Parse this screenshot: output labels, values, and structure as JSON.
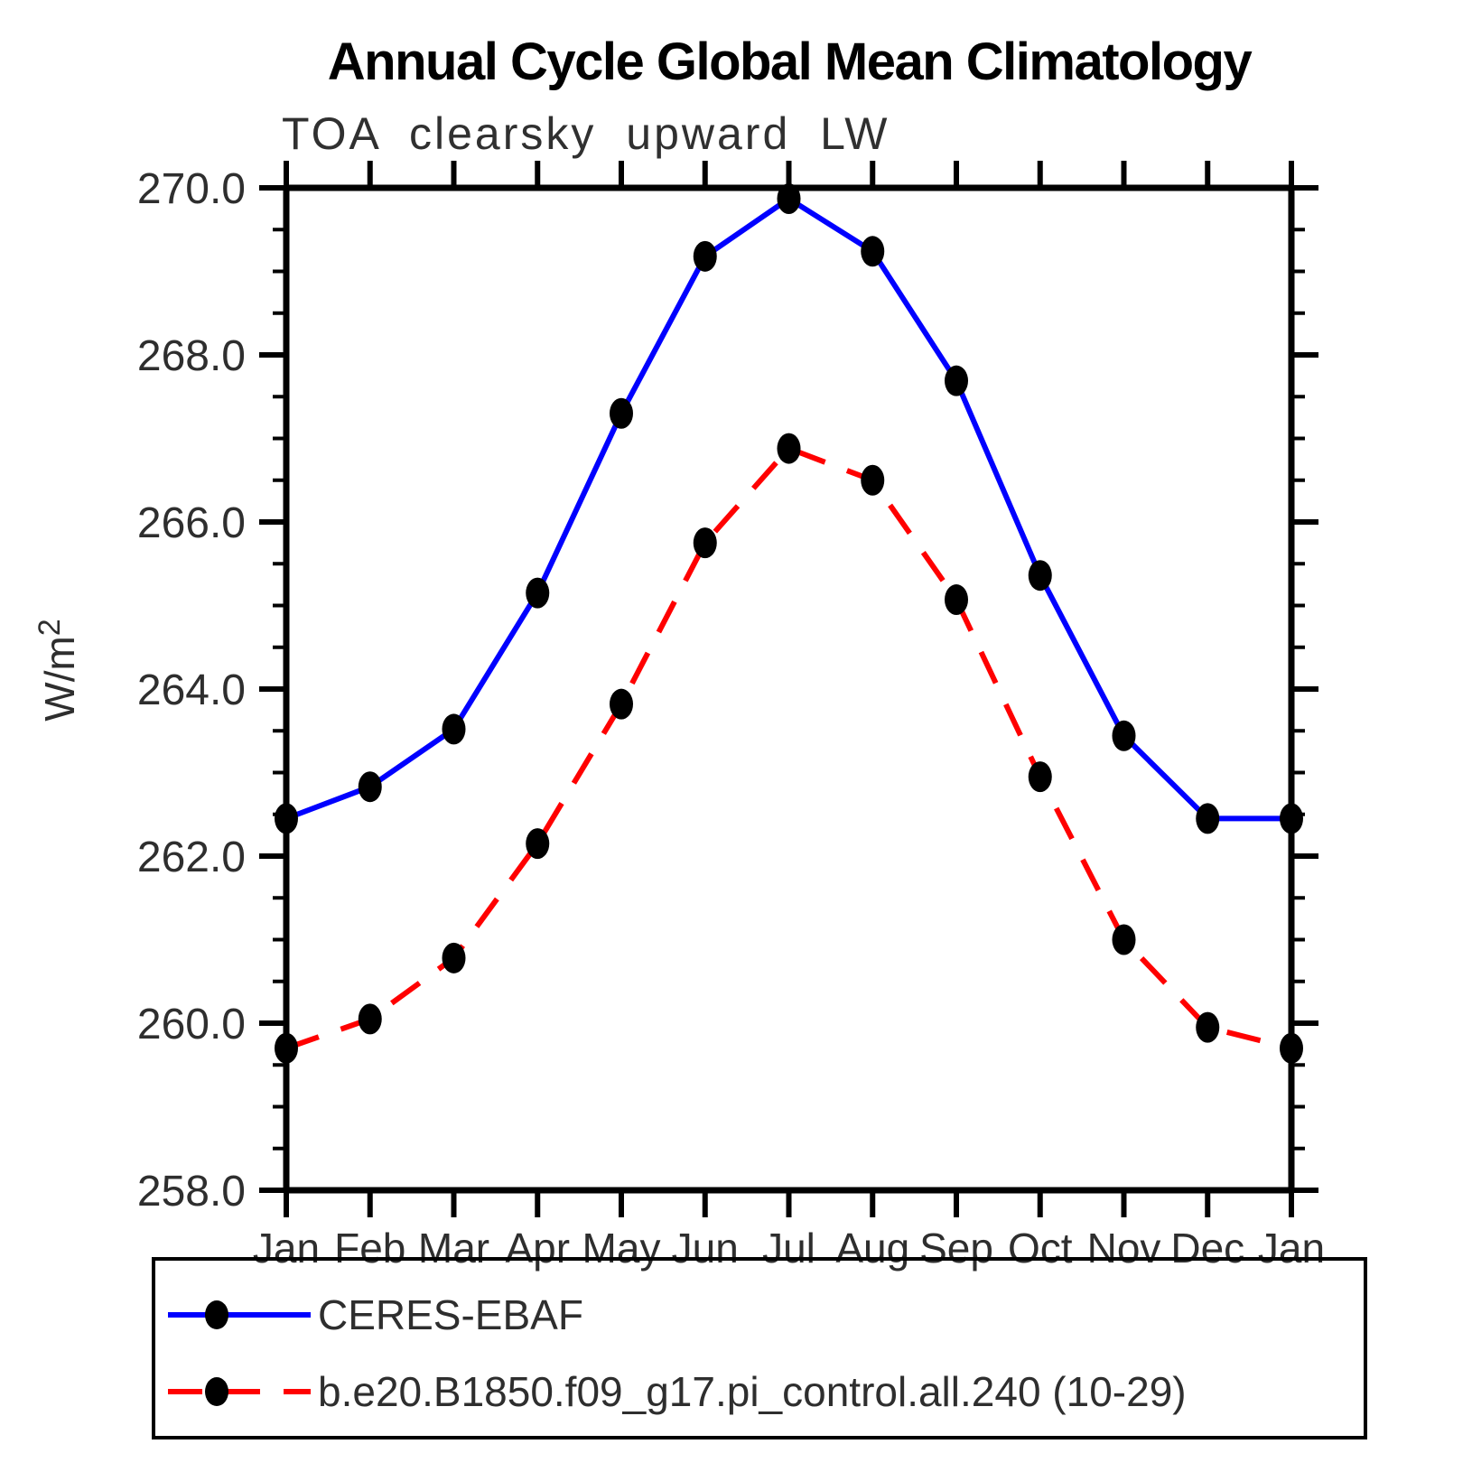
{
  "title": "Annual Cycle Global Mean Climatology",
  "subtitle": "TOA clearsky upward LW",
  "y_axis": {
    "unit_base": "W/m",
    "unit_exp": "2",
    "tick_labels": [
      "270.0",
      "268.0",
      "266.0",
      "264.0",
      "262.0",
      "260.0",
      "258.0"
    ],
    "min": 258.0,
    "max": 270.0,
    "major_step": 2.0,
    "minor_step": 0.5
  },
  "x_axis": {
    "tick_labels": [
      "Jan",
      "Feb",
      "Mar",
      "Apr",
      "May",
      "Jun",
      "Jul",
      "Aug",
      "Sep",
      "Oct",
      "Nov",
      "Dec",
      "Jan"
    ]
  },
  "legend": [
    {
      "label": "CERES-EBAF",
      "color": "#0000ff",
      "style": "solid",
      "marker_color": "#000000"
    },
    {
      "label": "b.e20.B1850.f09_g17.pi_control.all.240 (10-29)",
      "color": "#ff0000",
      "style": "dashed",
      "marker_color": "#000000"
    }
  ],
  "chart_data": {
    "type": "line",
    "x": [
      "Jan",
      "Feb",
      "Mar",
      "Apr",
      "May",
      "Jun",
      "Jul",
      "Aug",
      "Sep",
      "Oct",
      "Nov",
      "Dec",
      "Jan"
    ],
    "series": [
      {
        "name": "CERES-EBAF",
        "color": "#0000ff",
        "line_style": "solid",
        "marker": "filled-circle",
        "marker_color": "#000000",
        "values": [
          262.45,
          262.83,
          263.52,
          265.15,
          267.3,
          269.18,
          269.87,
          269.24,
          267.69,
          265.36,
          263.44,
          262.45,
          262.45
        ]
      },
      {
        "name": "b.e20.B1850.f09_g17.pi_control.all.240 (10-29)",
        "color": "#ff0000",
        "line_style": "dashed",
        "marker": "filled-circle",
        "marker_color": "#000000",
        "values": [
          259.7,
          260.05,
          260.78,
          262.15,
          263.82,
          265.75,
          266.88,
          266.5,
          265.07,
          262.95,
          261.0,
          259.95,
          259.7
        ]
      }
    ],
    "title": "Annual Cycle Global Mean Climatology",
    "subtitle": "TOA clearsky upward LW",
    "xlabel": "",
    "ylabel": "W/m^2",
    "ylim": [
      258.0,
      270.0
    ],
    "grid": false,
    "legend_position": "bottom",
    "ticks": "outward-all-four-sides"
  }
}
